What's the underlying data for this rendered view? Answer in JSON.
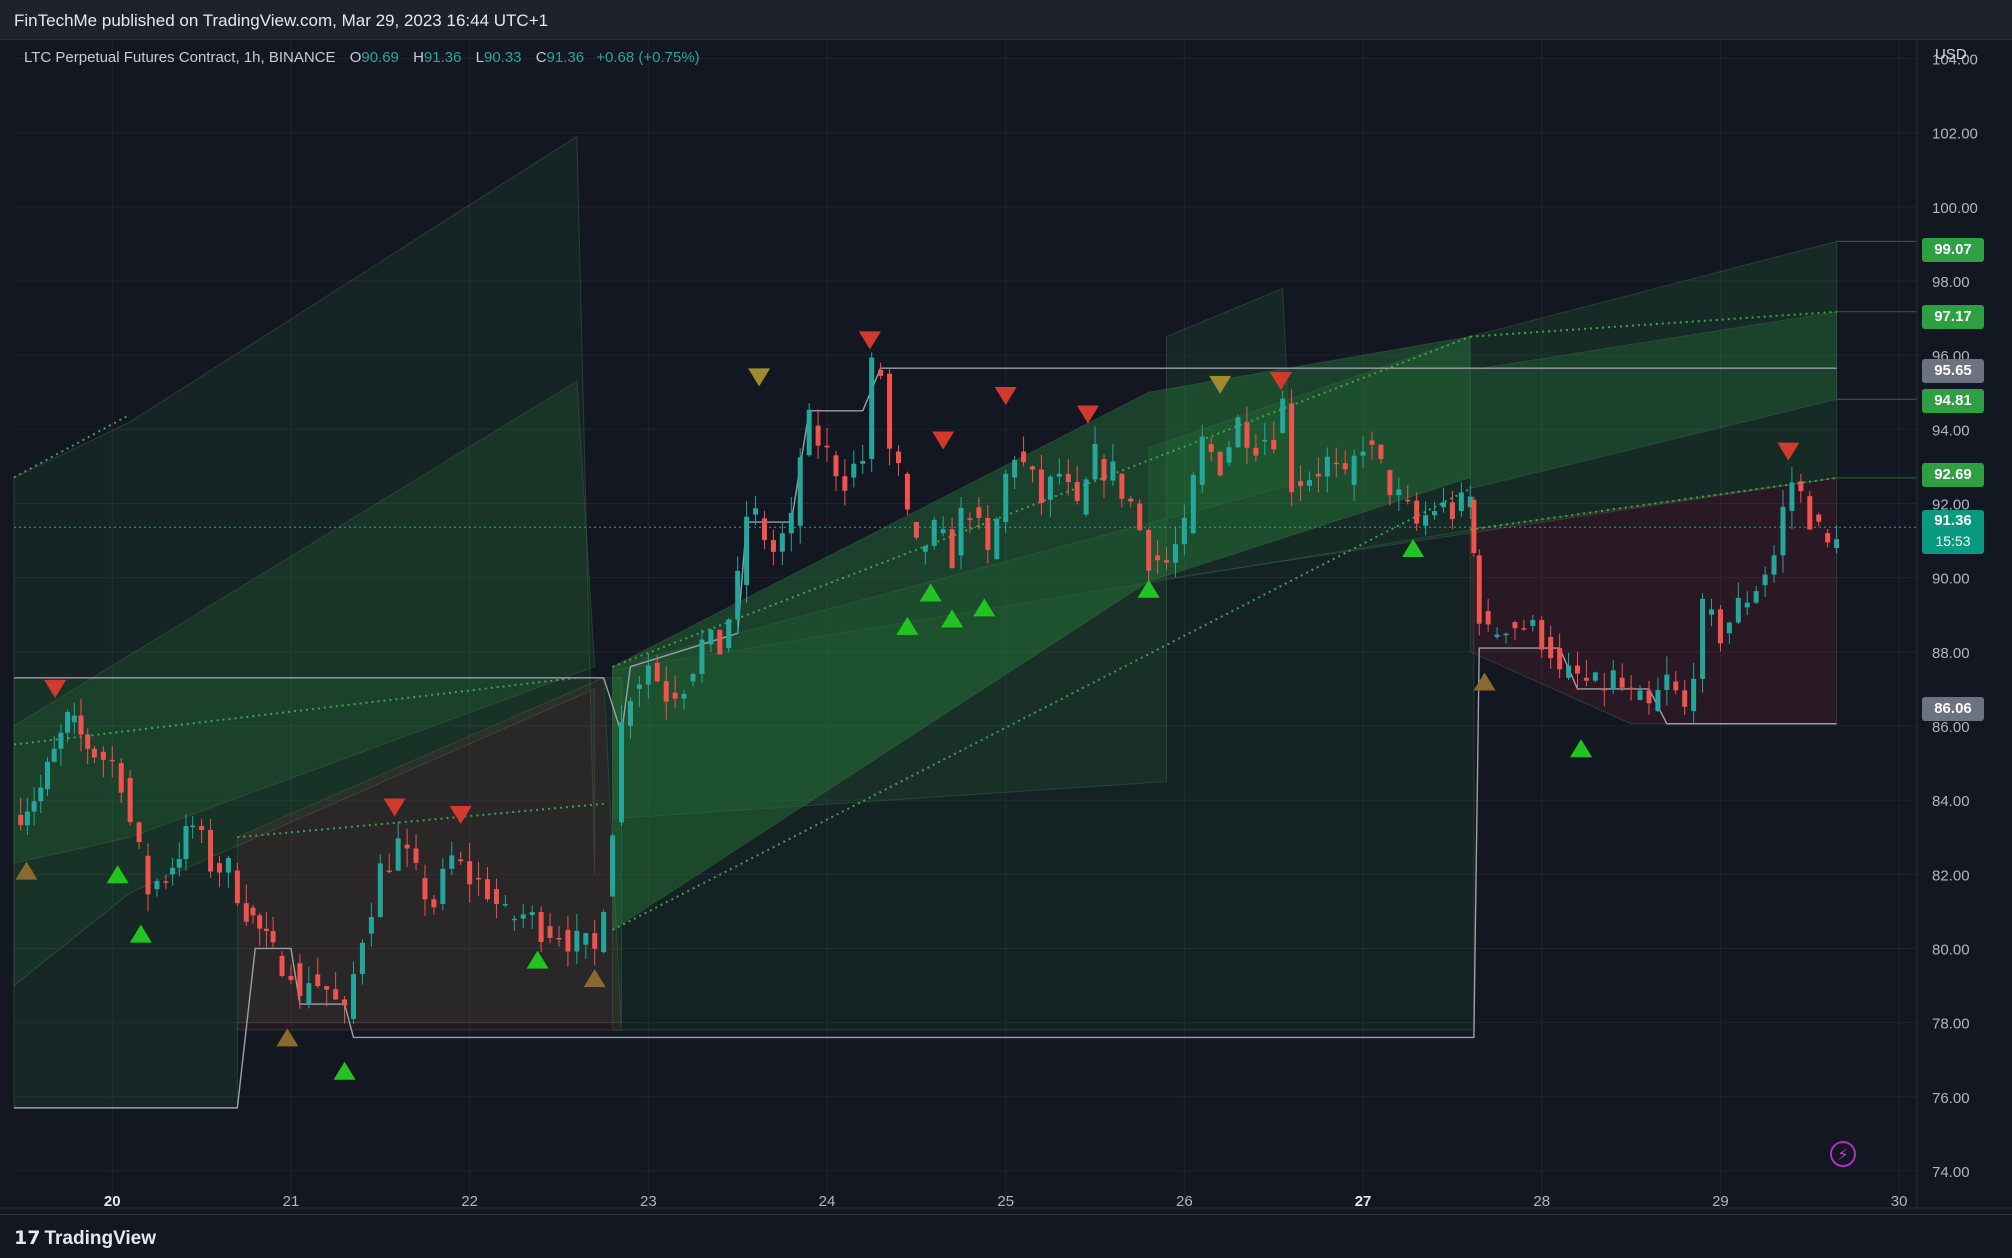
{
  "header": {
    "publisher": "FinTechMe published on TradingView.com, Mar 29, 2023 16:44 UTC+1"
  },
  "legend": {
    "symbol": "LTC Perpetual Futures Contract, 1h, BINANCE",
    "o_label": "O",
    "o_value": "90.69",
    "h_label": "H",
    "h_value": "91.36",
    "l_label": "L",
    "l_value": "90.33",
    "c_label": "C",
    "c_value": "91.36",
    "change": "+0.68 (+0.75%)"
  },
  "axis": {
    "currency": "USD",
    "price_ticks": [
      "104.00",
      "102.00",
      "100.00",
      "98.00",
      "96.00",
      "94.00",
      "92.00",
      "90.00",
      "88.00",
      "86.00",
      "84.00",
      "82.00",
      "80.00",
      "78.00",
      "76.00",
      "74.00"
    ],
    "date_ticks": [
      "20",
      "21",
      "22",
      "23",
      "24",
      "25",
      "26",
      "27",
      "28",
      "29",
      "30"
    ]
  },
  "price_labels": {
    "p1": {
      "text": "99.07",
      "color": "#2ea043"
    },
    "p2": {
      "text": "97.17",
      "color": "#2ea043"
    },
    "p3": {
      "text": "95.65",
      "color": "#6b7280"
    },
    "p4": {
      "text": "94.81",
      "color": "#2ea043"
    },
    "p5": {
      "text": "92.69",
      "color": "#2ea043"
    },
    "p6": {
      "text": "86.06",
      "color": "#6b7280"
    }
  },
  "last_price": {
    "price": "91.36",
    "countdown": "15:53"
  },
  "footer": {
    "brand": "TradingView",
    "logo": "tradingview-logo"
  },
  "colors": {
    "up": "#26a69a",
    "down": "#ef5350",
    "signal_up": "#22c422",
    "signal_down": "#d23a2e",
    "zone_green": "#2ea043"
  },
  "chart_data": {
    "type": "candlestick",
    "symbol": "LTC Perpetual Futures Contract",
    "interval": "1h",
    "exchange": "BINANCE",
    "ylim": [
      73,
      104.5
    ],
    "x_range_days": [
      19.45,
      30.1
    ],
    "x_axis_label_unit": "day of month (March 2023)",
    "levels": [
      99.07,
      97.17,
      95.65,
      94.81,
      92.69,
      86.06
    ],
    "last": 91.36,
    "close_path": [
      [
        19.45,
        83.6
      ],
      [
        19.6,
        84.3
      ],
      [
        19.75,
        86.1
      ],
      [
        19.9,
        85.3
      ],
      [
        20.0,
        85.0
      ],
      [
        20.05,
        84.6
      ],
      [
        20.1,
        83.4
      ],
      [
        20.15,
        82.5
      ],
      [
        20.2,
        81.6
      ],
      [
        20.3,
        82.0
      ],
      [
        20.45,
        83.3
      ],
      [
        20.55,
        82.3
      ],
      [
        20.65,
        82.1
      ],
      [
        20.75,
        81.1
      ],
      [
        20.9,
        79.8
      ],
      [
        21.0,
        79.6
      ],
      [
        21.05,
        78.5
      ],
      [
        21.1,
        79.3
      ],
      [
        21.2,
        78.9
      ],
      [
        21.3,
        78.1
      ],
      [
        21.4,
        80.4
      ],
      [
        21.5,
        82.1
      ],
      [
        21.6,
        82.8
      ],
      [
        21.7,
        81.9
      ],
      [
        21.8,
        81.2
      ],
      [
        21.9,
        82.4
      ],
      [
        22.0,
        81.9
      ],
      [
        22.1,
        81.6
      ],
      [
        22.2,
        80.8
      ],
      [
        22.3,
        80.9
      ],
      [
        22.4,
        80.6
      ],
      [
        22.5,
        80.5
      ],
      [
        22.6,
        80.1
      ],
      [
        22.7,
        79.9
      ],
      [
        22.75,
        81.4
      ],
      [
        22.8,
        83.4
      ],
      [
        22.85,
        86.0
      ],
      [
        22.9,
        87.0
      ],
      [
        23.0,
        87.7
      ],
      [
        23.1,
        86.9
      ],
      [
        23.2,
        87.2
      ],
      [
        23.3,
        88.2
      ],
      [
        23.4,
        88.1
      ],
      [
        23.5,
        89.8
      ],
      [
        23.55,
        91.7
      ],
      [
        23.6,
        91.6
      ],
      [
        23.7,
        90.7
      ],
      [
        23.8,
        91.4
      ],
      [
        23.85,
        93.3
      ],
      [
        23.9,
        94.1
      ],
      [
        24.0,
        93.3
      ],
      [
        24.1,
        92.7
      ],
      [
        24.2,
        93.2
      ],
      [
        24.25,
        95.6
      ],
      [
        24.3,
        95.5
      ],
      [
        24.35,
        93.4
      ],
      [
        24.4,
        92.8
      ],
      [
        24.45,
        91.5
      ],
      [
        24.5,
        90.7
      ],
      [
        24.6,
        91.2
      ],
      [
        24.7,
        90.6
      ],
      [
        24.75,
        91.6
      ],
      [
        24.8,
        91.9
      ],
      [
        24.9,
        90.5
      ],
      [
        24.95,
        91.5
      ],
      [
        25.0,
        92.7
      ],
      [
        25.05,
        93.4
      ],
      [
        25.1,
        93.0
      ],
      [
        25.2,
        92.1
      ],
      [
        25.3,
        92.8
      ],
      [
        25.4,
        91.7
      ],
      [
        25.5,
        93.2
      ],
      [
        25.6,
        92.8
      ],
      [
        25.7,
        92.0
      ],
      [
        25.8,
        90.6
      ],
      [
        25.9,
        90.4
      ],
      [
        26.0,
        91.2
      ],
      [
        26.05,
        92.5
      ],
      [
        26.1,
        93.6
      ],
      [
        26.2,
        93.1
      ],
      [
        26.3,
        94.2
      ],
      [
        26.4,
        93.7
      ],
      [
        26.5,
        93.9
      ],
      [
        26.55,
        94.7
      ],
      [
        26.6,
        92.6
      ],
      [
        26.7,
        92.8
      ],
      [
        26.8,
        93.1
      ],
      [
        26.9,
        92.5
      ],
      [
        27.0,
        93.7
      ],
      [
        27.1,
        92.9
      ],
      [
        27.2,
        92.1
      ],
      [
        27.3,
        91.4
      ],
      [
        27.4,
        91.9
      ],
      [
        27.5,
        91.8
      ],
      [
        27.55,
        91.9
      ],
      [
        27.6,
        92.1
      ],
      [
        27.62,
        90.6
      ],
      [
        27.65,
        89.1
      ],
      [
        27.7,
        88.4
      ],
      [
        27.8,
        88.8
      ],
      [
        27.9,
        88.7
      ],
      [
        28.0,
        88.4
      ],
      [
        28.05,
        88.1
      ],
      [
        28.1,
        87.3
      ],
      [
        28.2,
        87.3
      ],
      [
        28.3,
        87.0
      ],
      [
        28.4,
        87.3
      ],
      [
        28.5,
        86.7
      ],
      [
        28.6,
        86.4
      ],
      [
        28.7,
        87.2
      ],
      [
        28.8,
        86.4
      ],
      [
        28.9,
        89.0
      ],
      [
        29.0,
        88.5
      ],
      [
        29.1,
        89.2
      ],
      [
        29.2,
        89.8
      ],
      [
        29.3,
        90.6
      ],
      [
        29.35,
        91.8
      ],
      [
        29.4,
        92.6
      ],
      [
        29.45,
        92.2
      ],
      [
        29.5,
        91.7
      ],
      [
        29.55,
        91.2
      ],
      [
        29.6,
        90.8
      ],
      [
        29.65,
        91.36
      ]
    ],
    "signals_up": [
      {
        "x": 20.03,
        "y": 82.0
      },
      {
        "x": 20.16,
        "y": 80.4
      },
      {
        "x": 21.3,
        "y": 76.7
      },
      {
        "x": 22.38,
        "y": 79.7
      },
      {
        "x": 24.45,
        "y": 88.7
      },
      {
        "x": 24.58,
        "y": 89.6
      },
      {
        "x": 24.7,
        "y": 88.9
      },
      {
        "x": 24.88,
        "y": 89.2
      },
      {
        "x": 25.8,
        "y": 89.7
      },
      {
        "x": 27.28,
        "y": 90.8
      },
      {
        "x": 28.22,
        "y": 85.4
      }
    ],
    "signals_down": [
      {
        "x": 19.68,
        "y": 87.0
      },
      {
        "x": 21.58,
        "y": 83.8
      },
      {
        "x": 21.95,
        "y": 83.6
      },
      {
        "x": 24.24,
        "y": 96.4
      },
      {
        "x": 24.65,
        "y": 93.7
      },
      {
        "x": 25.0,
        "y": 94.9
      },
      {
        "x": 25.46,
        "y": 94.4
      },
      {
        "x": 26.54,
        "y": 95.3
      },
      {
        "x": 29.38,
        "y": 93.4
      }
    ],
    "signals_neutral_up": [
      {
        "x": 19.52,
        "y": 82.1
      },
      {
        "x": 20.98,
        "y": 77.6
      },
      {
        "x": 22.7,
        "y": 79.2
      },
      {
        "x": 27.68,
        "y": 87.2
      }
    ],
    "signals_neutral_down": [
      {
        "x": 23.62,
        "y": 95.4
      },
      {
        "x": 26.2,
        "y": 95.2
      }
    ]
  }
}
